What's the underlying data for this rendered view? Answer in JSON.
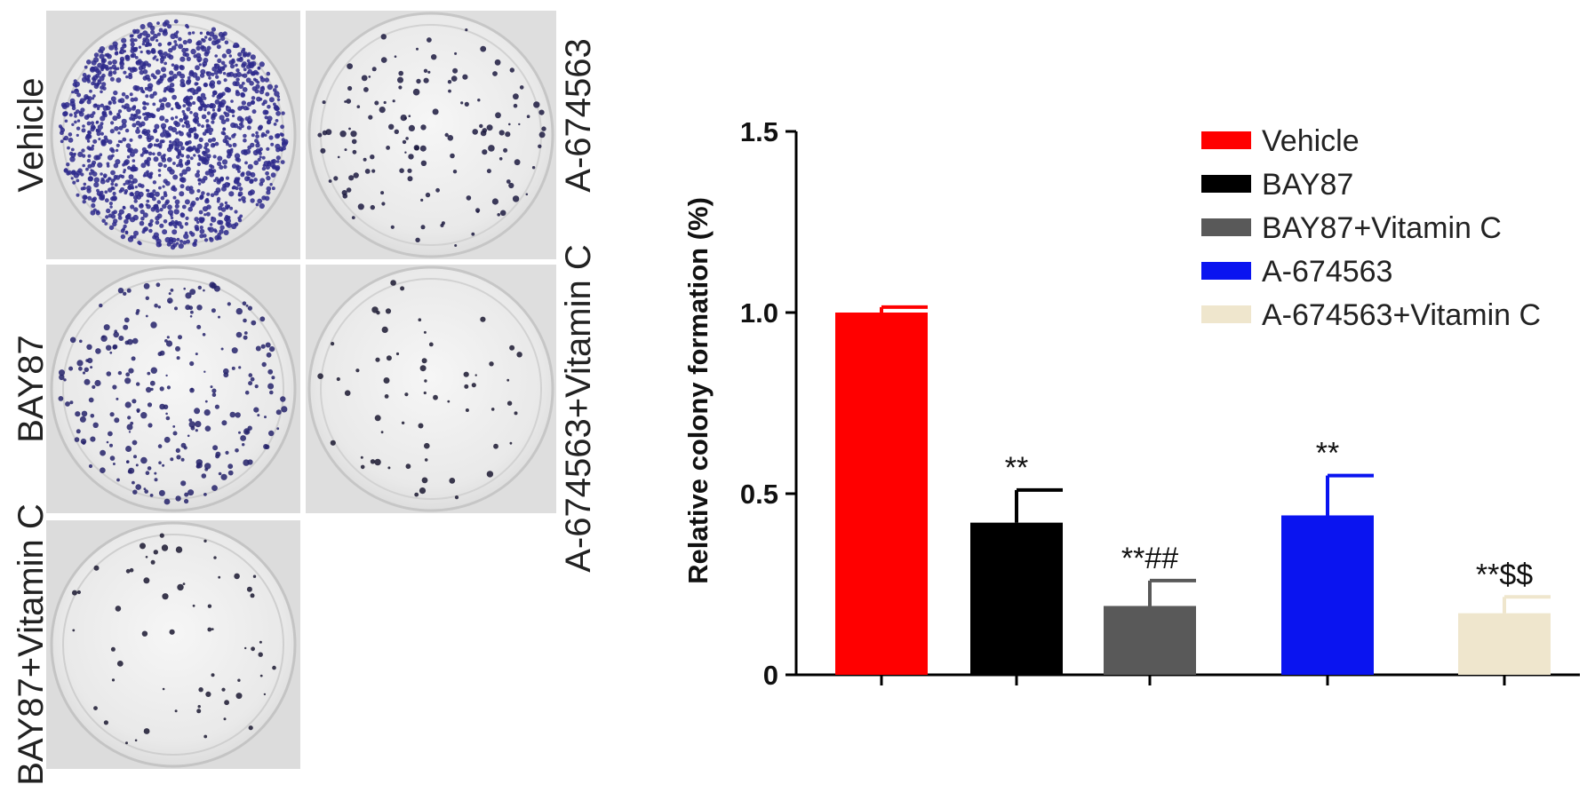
{
  "plates": [
    {
      "label": "Vehicle",
      "density": "high",
      "dot_color": "#2e2a8c"
    },
    {
      "label": "A-674563",
      "density": "low",
      "dot_color": "#1c1a40"
    },
    {
      "label": "BAY87",
      "density": "medium",
      "dot_color": "#25226a"
    },
    {
      "label": "A-674563+Vitamin C",
      "density": "very-low",
      "dot_color": "#1a1830"
    },
    {
      "label": "BAY87+Vitamin C",
      "density": "very-low",
      "dot_color": "#1a1830"
    }
  ],
  "chart_data": {
    "type": "bar",
    "ylabel": "Relative colony formation (%)",
    "xlabel": "",
    "ylim": [
      0,
      1.5
    ],
    "yticks": [
      0,
      0.5,
      1.0,
      1.5
    ],
    "ytick_labels": [
      "0",
      "0.5",
      "1.0",
      "1.5"
    ],
    "grid": false,
    "legend_position": "top-right",
    "categories": [
      "Vehicle",
      "BAY87",
      "BAY87+Vitamin C",
      "A-674563",
      "A-674563+Vitamin C"
    ],
    "values": [
      1.0,
      0.42,
      0.19,
      0.44,
      0.17
    ],
    "errors": [
      0.015,
      0.09,
      0.07,
      0.11,
      0.045
    ],
    "colors": [
      "#ff0000",
      "#000000",
      "#595959",
      "#0a14f0",
      "#efe6cd"
    ],
    "annotations": [
      "",
      "**",
      "**##",
      "**",
      "**$$"
    ]
  }
}
